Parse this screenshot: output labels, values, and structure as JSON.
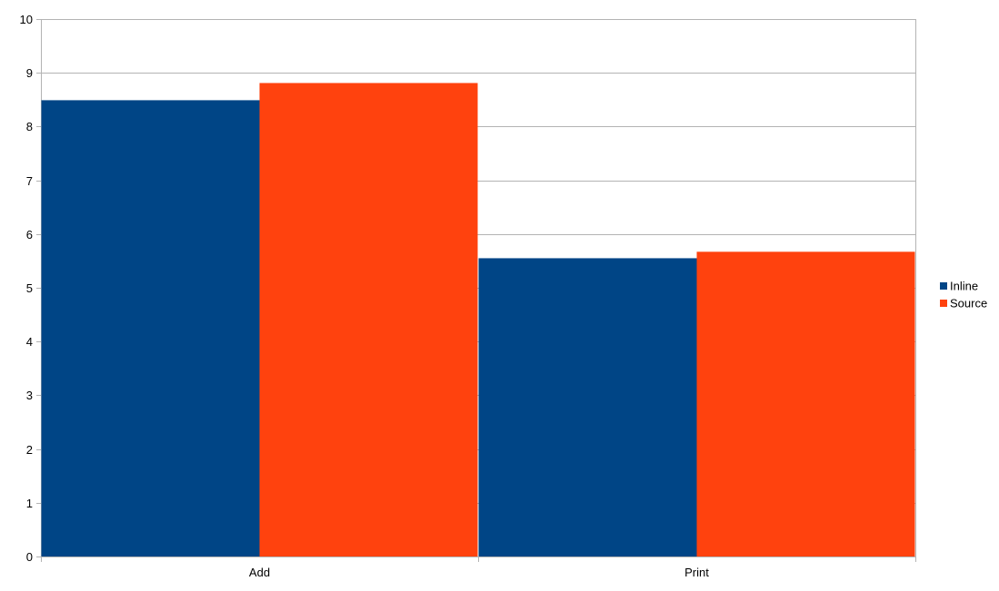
{
  "chart_data": {
    "type": "bar",
    "title": "",
    "xlabel": "",
    "ylabel": "",
    "categories": [
      "Add",
      "Print"
    ],
    "series": [
      {
        "name": "Inline",
        "values": [
          8.49,
          5.55
        ],
        "color": "#004586"
      },
      {
        "name": "Source",
        "values": [
          8.81,
          5.67
        ],
        "color": "#ff420e"
      }
    ],
    "ylim": [
      0,
      10
    ],
    "yticks": [
      "0",
      "1",
      "2",
      "3",
      "4",
      "5",
      "6",
      "7",
      "8",
      "9",
      "10"
    ],
    "grid": true,
    "legend_position": "right"
  }
}
